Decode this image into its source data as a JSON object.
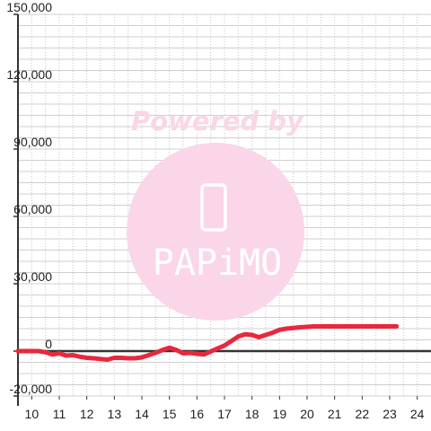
{
  "chart_data": {
    "type": "line",
    "title": "",
    "xlabel": "",
    "ylabel": "",
    "xlim": [
      9.5,
      24.5
    ],
    "ylim": [
      -20000,
      150000
    ],
    "x_ticks": [
      10,
      11,
      12,
      13,
      14,
      15,
      16,
      17,
      18,
      19,
      20,
      21,
      22,
      23,
      24
    ],
    "x_tick_labels": [
      "10",
      "11",
      "12",
      "13",
      "14",
      "15",
      "16",
      "17",
      "18",
      "19",
      "20",
      "21",
      "22",
      "23",
      "24"
    ],
    "y_ticks": [
      -20000,
      0,
      30000,
      60000,
      90000,
      120000,
      150000
    ],
    "y_tick_labels": [
      "-20,000",
      "0",
      "30,000",
      "60,000",
      "90,000",
      "120,000",
      "150,000"
    ],
    "grid": true,
    "series": [
      {
        "color": "#e8283c",
        "x": [
          9.5,
          10.0,
          10.25,
          10.5,
          10.75,
          11.0,
          11.25,
          11.5,
          11.75,
          12.0,
          12.25,
          12.5,
          12.75,
          13.0,
          13.25,
          13.5,
          13.75,
          14.0,
          14.25,
          14.5,
          14.75,
          15.0,
          15.25,
          15.5,
          15.75,
          16.0,
          16.25,
          16.5,
          16.75,
          17.0,
          17.25,
          17.5,
          17.75,
          18.0,
          18.25,
          18.5,
          18.75,
          19.0,
          19.25,
          19.5,
          19.75,
          20.0,
          20.25,
          20.5,
          20.75,
          21.0,
          21.25,
          21.5,
          21.75,
          22.0,
          22.25,
          22.5,
          22.75,
          23.0,
          23.25
        ],
        "y": [
          0,
          0,
          0,
          -500,
          -1500,
          -1000,
          -2000,
          -1800,
          -2500,
          -3000,
          -3200,
          -3500,
          -3800,
          -3000,
          -3000,
          -3200,
          -3200,
          -2800,
          -1800,
          -800,
          500,
          1500,
          500,
          -1000,
          -800,
          -1200,
          -1500,
          -200,
          1200,
          2500,
          4500,
          6500,
          7500,
          7200,
          6200,
          7200,
          8200,
          9500,
          10000,
          10300,
          10600,
          10800,
          11000,
          11000,
          11000,
          11000,
          11000,
          11000,
          11000,
          11000,
          11000,
          11000,
          11000,
          11000,
          11000
        ]
      }
    ]
  },
  "watermark": {
    "text": "Powered by",
    "logo_text": "PAPiMO",
    "color": "#fad6e8"
  }
}
